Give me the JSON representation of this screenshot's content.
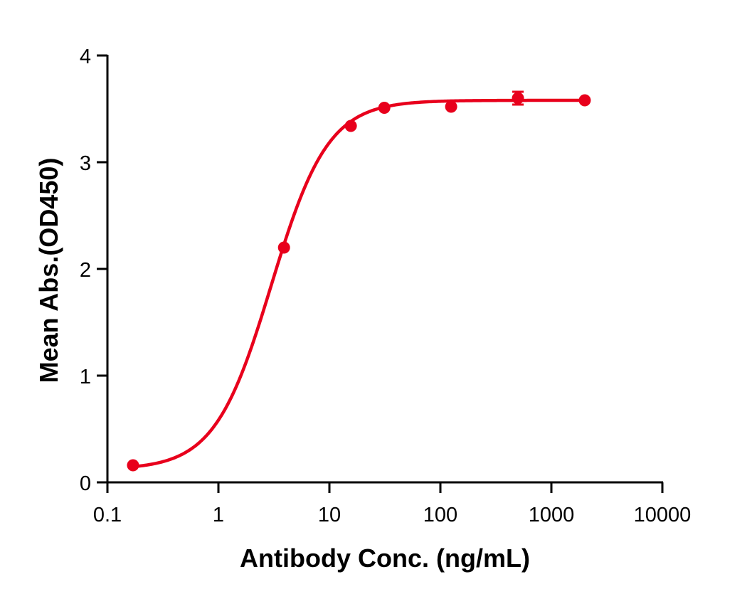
{
  "chart_data": {
    "type": "scatter",
    "title": "",
    "xlabel": "Antibody Conc. (ng/mL)",
    "ylabel": "Mean Abs.(OD450)",
    "xscale": "log",
    "xlim": [
      0.1,
      10000
    ],
    "ylim": [
      0,
      4
    ],
    "x_ticks": [
      0.1,
      1,
      10,
      100,
      1000,
      10000
    ],
    "x_tick_labels": [
      "0.1",
      "1",
      "10",
      "100",
      "1000",
      "10000"
    ],
    "y_ticks": [
      0,
      1,
      2,
      3,
      4
    ],
    "y_tick_labels": [
      "0",
      "1",
      "2",
      "3",
      "4"
    ],
    "grid": false,
    "legend": null,
    "color": "#E8001C",
    "series": [
      {
        "name": "Mean Abs.",
        "x": [
          0.17,
          3.9,
          15.6,
          31.25,
          125,
          500,
          2000
        ],
        "y": [
          0.16,
          2.2,
          3.34,
          3.51,
          3.52,
          3.6,
          3.58
        ],
        "error": [
          0,
          0,
          0,
          0,
          0,
          0.06,
          0
        ]
      }
    ],
    "fit": {
      "model": "4PL",
      "bottom": 0.12,
      "top": 3.58,
      "ec50": 3.0,
      "hill": 1.7,
      "x_range": [
        0.17,
        2000
      ]
    }
  }
}
